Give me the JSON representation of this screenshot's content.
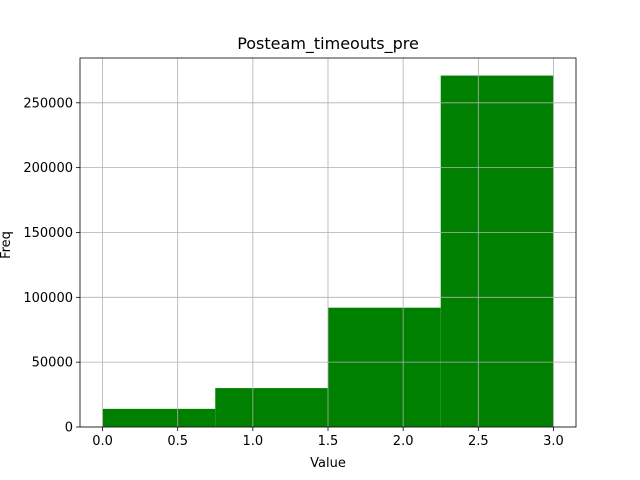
{
  "chart_data": {
    "type": "bar",
    "title": "Posteam_timeouts_pre",
    "xlabel": "Value",
    "ylabel": "Freq",
    "bins": [
      {
        "x0": 0.0,
        "x1": 0.75,
        "count": 14000
      },
      {
        "x0": 0.75,
        "x1": 1.5,
        "count": 30000
      },
      {
        "x0": 1.5,
        "x1": 2.25,
        "count": 92000
      },
      {
        "x0": 2.25,
        "x1": 3.0,
        "count": 271000
      }
    ],
    "xlim": [
      -0.15,
      3.15
    ],
    "ylim": [
      0,
      284550
    ],
    "xticks": [
      0.0,
      0.5,
      1.0,
      1.5,
      2.0,
      2.5,
      3.0
    ],
    "xtick_labels": [
      "0.0",
      "0.5",
      "1.0",
      "1.5",
      "2.0",
      "2.5",
      "3.0"
    ],
    "yticks": [
      0,
      50000,
      100000,
      150000,
      200000,
      250000
    ],
    "ytick_labels": [
      "0",
      "50000",
      "100000",
      "150000",
      "200000",
      "250000"
    ],
    "bar_color": "#008000",
    "grid": true
  }
}
